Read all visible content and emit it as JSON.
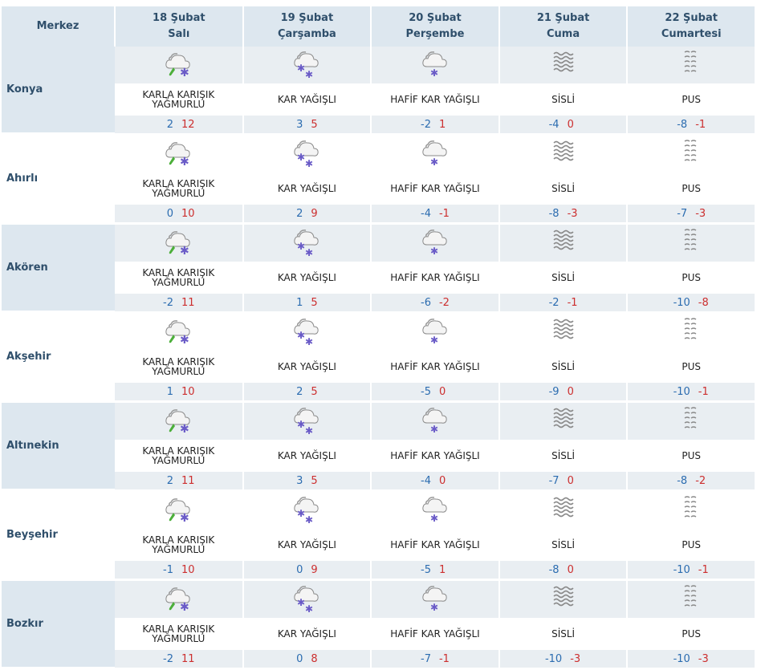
{
  "header": {
    "merkez": "Merkez",
    "days": [
      {
        "date": "18 Şubat",
        "day": "Salı"
      },
      {
        "date": "19 Şubat",
        "day": "Çarşamba"
      },
      {
        "date": "20 Şubat",
        "day": "Perşembe"
      },
      {
        "date": "21 Şubat",
        "day": "Cuma"
      },
      {
        "date": "22 Şubat",
        "day": "Cumartesi"
      }
    ]
  },
  "conditions": {
    "sleet": {
      "label": "KARLA KARIŞIK YAĞMURLU",
      "icon": "sleet-icon"
    },
    "snow": {
      "label": "KAR YAĞIŞLI",
      "icon": "snow-icon"
    },
    "light_snow": {
      "label": "HAFİF KAR YAĞIŞLI",
      "icon": "light-snow-icon"
    },
    "fog": {
      "label": "SİSLİ",
      "icon": "fog-icon"
    },
    "mist": {
      "label": "PUS",
      "icon": "mist-icon"
    }
  },
  "colors": {
    "min": "#2b6cb0",
    "max": "#cc2e2e",
    "header_bg": "#dde7ef"
  },
  "cities": [
    {
      "name": "Konya",
      "days": [
        {
          "cond": "sleet",
          "desc": "KARLA KARIŞIK YAĞMURLU",
          "min": "2",
          "max": "12"
        },
        {
          "cond": "snow",
          "desc": "KAR YAĞIŞLI",
          "min": "3",
          "max": "5"
        },
        {
          "cond": "light_snow",
          "desc": "HAFİF KAR YAĞIŞLI",
          "min": "-2",
          "max": "1"
        },
        {
          "cond": "fog",
          "desc": "SİSLİ",
          "min": "-4",
          "max": "0"
        },
        {
          "cond": "mist",
          "desc": "PUS",
          "min": "-8",
          "max": "-1"
        }
      ]
    },
    {
      "name": "Ahırlı",
      "days": [
        {
          "cond": "sleet",
          "desc": "KARLA KARIŞIK YAĞMURLU",
          "min": "0",
          "max": "10"
        },
        {
          "cond": "snow",
          "desc": "KAR YAĞIŞLI",
          "min": "2",
          "max": "9"
        },
        {
          "cond": "light_snow",
          "desc": "HAFİF KAR YAĞIŞLI",
          "min": "-4",
          "max": "-1"
        },
        {
          "cond": "fog",
          "desc": "SİSLİ",
          "min": "-8",
          "max": "-3"
        },
        {
          "cond": "mist",
          "desc": "PUS",
          "min": "-7",
          "max": "-3"
        }
      ]
    },
    {
      "name": "Akören",
      "days": [
        {
          "cond": "sleet",
          "desc": "KARLA KARIŞIK YAĞMURLU",
          "min": "-2",
          "max": "11"
        },
        {
          "cond": "snow",
          "desc": "KAR YAĞIŞLI",
          "min": "1",
          "max": "5"
        },
        {
          "cond": "light_snow",
          "desc": "HAFİF KAR YAĞIŞLI",
          "min": "-6",
          "max": "-2"
        },
        {
          "cond": "fog",
          "desc": "SİSLİ",
          "min": "-2",
          "max": "-1"
        },
        {
          "cond": "mist",
          "desc": "PUS",
          "min": "-10",
          "max": "-8"
        }
      ]
    },
    {
      "name": "Akşehir",
      "days": [
        {
          "cond": "sleet",
          "desc": "KARLA KARIŞIK YAĞMURLU",
          "min": "1",
          "max": "10"
        },
        {
          "cond": "snow",
          "desc": "KAR YAĞIŞLI",
          "min": "2",
          "max": "5"
        },
        {
          "cond": "light_snow",
          "desc": "HAFİF KAR YAĞIŞLI",
          "min": "-5",
          "max": "0"
        },
        {
          "cond": "fog",
          "desc": "SİSLİ",
          "min": "-9",
          "max": "0"
        },
        {
          "cond": "mist",
          "desc": "PUS",
          "min": "-10",
          "max": "-1"
        }
      ]
    },
    {
      "name": "Altınekin",
      "days": [
        {
          "cond": "sleet",
          "desc": "KARLA KARIŞIK YAĞMURLU",
          "min": "2",
          "max": "11"
        },
        {
          "cond": "snow",
          "desc": "KAR YAĞIŞLI",
          "min": "3",
          "max": "5"
        },
        {
          "cond": "light_snow",
          "desc": "HAFİF KAR YAĞIŞLI",
          "min": "-4",
          "max": "0"
        },
        {
          "cond": "fog",
          "desc": "SİSLİ",
          "min": "-7",
          "max": "0"
        },
        {
          "cond": "mist",
          "desc": "PUS",
          "min": "-8",
          "max": "-2"
        }
      ]
    },
    {
      "name": "Beyşehir",
      "days": [
        {
          "cond": "sleet",
          "desc": "KARLA KARIŞIK YAĞMURLU",
          "min": "-1",
          "max": "10"
        },
        {
          "cond": "snow",
          "desc": "KAR YAĞIŞLI",
          "min": "0",
          "max": "9"
        },
        {
          "cond": "light_snow",
          "desc": "HAFİF KAR YAĞIŞLI",
          "min": "-5",
          "max": "1"
        },
        {
          "cond": "fog",
          "desc": "SİSLİ",
          "min": "-8",
          "max": "0"
        },
        {
          "cond": "mist",
          "desc": "PUS",
          "min": "-10",
          "max": "-1"
        }
      ]
    },
    {
      "name": "Bozkır",
      "days": [
        {
          "cond": "sleet",
          "desc": "KARLA KARIŞIK YAĞMURLU",
          "min": "-2",
          "max": "11"
        },
        {
          "cond": "snow",
          "desc": "KAR YAĞIŞLI",
          "min": "0",
          "max": "8"
        },
        {
          "cond": "light_snow",
          "desc": "HAFİF KAR YAĞIŞLI",
          "min": "-7",
          "max": "-1"
        },
        {
          "cond": "fog",
          "desc": "SİSLİ",
          "min": "-10",
          "max": "-3"
        },
        {
          "cond": "mist",
          "desc": "PUS",
          "min": "-10",
          "max": "-3"
        }
      ]
    }
  ]
}
